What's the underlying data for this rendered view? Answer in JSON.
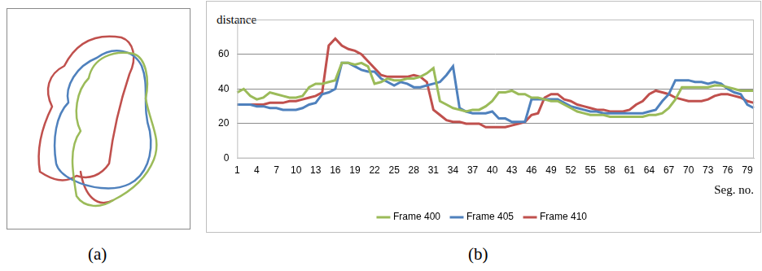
{
  "chart_data": {
    "type": "line",
    "y_label": "distance",
    "x_label": "Seg. no.",
    "categories": [
      "1",
      null,
      null,
      "4",
      null,
      null,
      "7",
      null,
      null,
      "10",
      null,
      null,
      "13",
      null,
      null,
      "16",
      null,
      null,
      "19",
      null,
      null,
      "22",
      null,
      null,
      "25",
      null,
      null,
      "28",
      null,
      null,
      "31",
      null,
      null,
      "34",
      null,
      null,
      "37",
      null,
      null,
      "40",
      null,
      null,
      "43",
      null,
      null,
      "46",
      null,
      null,
      "49",
      null,
      null,
      "52",
      null,
      null,
      "55",
      null,
      null,
      "58",
      null,
      null,
      "61",
      null,
      null,
      "64",
      null,
      null,
      "67",
      null,
      null,
      "70",
      null,
      null,
      "73",
      null,
      null,
      "76",
      null,
      null,
      "79",
      null
    ],
    "series": [
      {
        "name": "Frame 400",
        "color": "#9bbb59",
        "values": [
          38,
          40,
          36,
          34,
          35,
          38,
          37,
          36,
          35,
          35,
          36,
          41,
          43,
          43,
          44,
          45,
          55,
          55,
          54,
          55,
          53,
          43,
          44,
          46,
          45,
          45,
          46,
          46,
          47,
          49,
          52,
          33,
          31,
          29,
          28,
          27,
          28,
          28,
          30,
          33,
          38,
          38,
          39,
          37,
          37,
          35,
          35,
          34,
          33,
          33,
          31,
          29,
          27,
          26,
          25,
          25,
          25,
          24,
          24,
          24,
          24,
          24,
          24,
          25,
          25,
          26,
          29,
          34,
          41,
          41,
          41,
          41,
          41,
          42,
          42,
          41,
          40,
          39,
          39,
          39
        ]
      },
      {
        "name": "Frame 405",
        "color": "#4f81bd",
        "values": [
          31,
          31,
          31,
          30,
          30,
          29,
          29,
          28,
          28,
          28,
          29,
          31,
          32,
          37,
          38,
          40,
          55,
          55,
          53,
          51,
          50,
          50,
          46,
          44,
          42,
          44,
          43,
          41,
          41,
          42,
          43,
          44,
          48,
          53,
          29,
          27,
          26,
          26,
          26,
          27,
          23,
          23,
          21,
          21,
          21,
          34,
          34,
          34,
          34,
          34,
          32,
          30,
          29,
          28,
          27,
          27,
          26,
          26,
          26,
          26,
          26,
          26,
          26,
          27,
          28,
          33,
          37,
          45,
          45,
          45,
          44,
          44,
          43,
          44,
          43,
          40,
          38,
          37,
          31,
          29
        ]
      },
      {
        "name": "Frame 410",
        "color": "#c0504d",
        "values": [
          31,
          31,
          31,
          31,
          31,
          32,
          32,
          32,
          33,
          33,
          34,
          35,
          36,
          38,
          65,
          69,
          65,
          63,
          62,
          60,
          56,
          52,
          48,
          47,
          47,
          47,
          47,
          48,
          47,
          44,
          28,
          25,
          22,
          21,
          21,
          20,
          20,
          20,
          18,
          18,
          18,
          18,
          19,
          20,
          21,
          25,
          26,
          35,
          37,
          37,
          34,
          33,
          31,
          30,
          29,
          28,
          28,
          27,
          27,
          27,
          28,
          31,
          33,
          37,
          39,
          38,
          37,
          35,
          34,
          33,
          33,
          33,
          34,
          36,
          37,
          37,
          36,
          35,
          33,
          32
        ]
      }
    ],
    "ylim": [
      0,
      80
    ],
    "yticks": [
      0,
      20,
      40,
      60
    ],
    "grid": true,
    "legend": "bottom"
  },
  "panel_labels": [
    "(a)",
    "(b)"
  ]
}
